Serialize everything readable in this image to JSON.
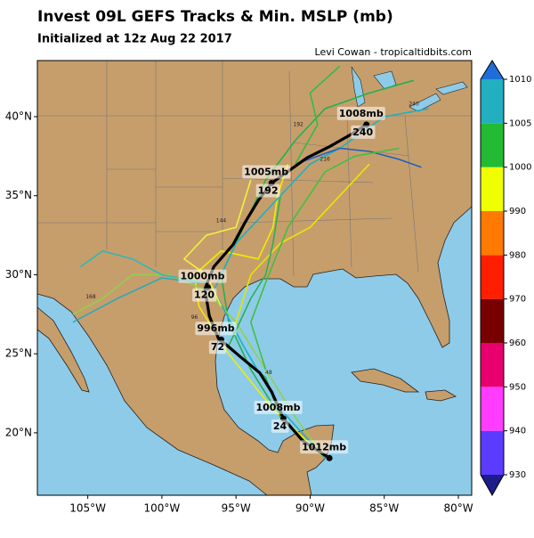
{
  "map": {
    "title": "Invest 09L GEFS Tracks & Min. MSLP (mb)",
    "subtitle": "Initialized at 12z Aug 22 2017",
    "credit": "Levi Cowan - tropicaltidbits.com",
    "xlim": [
      -108.4,
      -79.1
    ],
    "ylim": [
      16.05,
      43.55
    ],
    "xticks": [
      {
        "value": -105,
        "label": "105°W"
      },
      {
        "value": -100,
        "label": "100°W"
      },
      {
        "value": -95,
        "label": "95°W"
      },
      {
        "value": -90,
        "label": "90°W"
      },
      {
        "value": -85,
        "label": "85°W"
      },
      {
        "value": -80,
        "label": "80°W"
      }
    ],
    "yticks": [
      {
        "value": 20,
        "label": "20°N"
      },
      {
        "value": 25,
        "label": "25°N"
      },
      {
        "value": 30,
        "label": "30°N"
      },
      {
        "value": 35,
        "label": "35°N"
      },
      {
        "value": 40,
        "label": "40°N"
      }
    ],
    "colorbar": {
      "ticks": [
        930,
        940,
        950,
        960,
        970,
        980,
        990,
        1000,
        1005,
        1010
      ],
      "colors": [
        "#5b3cff",
        "#ff3cff",
        "#e8006e",
        "#780000",
        "#ff1e00",
        "#ff7a00",
        "#f0ff00",
        "#22bb33",
        "#22b0c0"
      ],
      "under_color": "#1c1c8c",
      "over_color": "#1e6ed8"
    },
    "member_tracks": [
      {
        "color": "#22b14c",
        "lon": [
          -89,
          -92,
          -94,
          -95.5,
          -96,
          -94.5,
          -93,
          -91,
          -89,
          -86,
          -83
        ],
        "lat": [
          18.4,
          21,
          24,
          27,
          30,
          33,
          36,
          38.5,
          40.5,
          41.5,
          42.3
        ]
      },
      {
        "color": "#eeee00",
        "lon": [
          -89,
          -92.5,
          -95.5,
          -97.5,
          -97.8,
          -96,
          -93.5,
          -92.5,
          -92.2,
          -91.5
        ],
        "lat": [
          18.4,
          21.5,
          25,
          28,
          30,
          31.5,
          31,
          33,
          35,
          37
        ]
      },
      {
        "color": "#90d050",
        "lon": [
          -89,
          -91,
          -93,
          -95,
          -97,
          -99.5,
          -102,
          -104,
          -106
        ],
        "lat": [
          18.4,
          21,
          24,
          27,
          29,
          30,
          30,
          28.5,
          27.5
        ]
      },
      {
        "color": "#20b0c0",
        "lon": [
          -89,
          -92,
          -94.5,
          -96.5,
          -95,
          -92,
          -90,
          -88,
          -85,
          -82
        ],
        "lat": [
          18.4,
          21.5,
          25.5,
          29,
          32,
          35,
          37,
          38,
          40,
          40.5
        ]
      },
      {
        "color": "#2060c0",
        "lon": [
          -91,
          -88,
          -86,
          -84,
          -82.5
        ],
        "lat": [
          37,
          38,
          37.8,
          37.3,
          36.8
        ]
      },
      {
        "color": "#33bb44",
        "lon": [
          -91,
          -89.5,
          -90,
          -88
        ],
        "lat": [
          37,
          39.5,
          41.5,
          43.2
        ]
      },
      {
        "color": "#e6e600",
        "lon": [
          -95,
          -94,
          -92,
          -90,
          -88,
          -86
        ],
        "lat": [
          27,
          30,
          32,
          33,
          35,
          37
        ]
      },
      {
        "color": "#40c040",
        "lon": [
          -93,
          -94,
          -93,
          -91.5,
          -89,
          -87,
          -84
        ],
        "lat": [
          24,
          27,
          29.5,
          33,
          36.5,
          37.5,
          38
        ]
      },
      {
        "color": "#30b8b8",
        "lon": [
          -97,
          -100,
          -102,
          -104,
          -105.5
        ],
        "lat": [
          29.5,
          30,
          31,
          31.5,
          30.5
        ]
      },
      {
        "color": "#30a8b8",
        "lon": [
          -97.5,
          -100,
          -103,
          -106
        ],
        "lat": [
          29.5,
          29.8,
          28.5,
          27
        ]
      },
      {
        "color": "#f0f040",
        "lon": [
          -96,
          -97,
          -98.5,
          -97,
          -95,
          -94
        ],
        "lat": [
          28,
          30,
          31,
          32.5,
          33,
          36
        ]
      },
      {
        "color": "#2cb050",
        "lon": [
          -92,
          -93,
          -95.5,
          -95,
          -94,
          -93,
          -92.5,
          -92
        ],
        "lat": [
          21,
          23.5,
          25.5,
          26.5,
          28.5,
          30,
          32,
          35
        ]
      }
    ],
    "member_labels": [
      {
        "hour": 192,
        "lon": -90.8,
        "lat": 39.5
      },
      {
        "hour": 216,
        "lon": -89,
        "lat": 37.3
      },
      {
        "hour": 240,
        "lon": -83,
        "lat": 40.8
      },
      {
        "hour": 168,
        "lon": -104.8,
        "lat": 28.6
      },
      {
        "hour": 144,
        "lon": -96,
        "lat": 33.4
      },
      {
        "hour": 48,
        "lon": -92.8,
        "lat": 23.8
      },
      {
        "hour": 96,
        "lon": -97.8,
        "lat": 27.3
      }
    ],
    "mean_track": {
      "lon": [
        -88.7,
        -90.5,
        -91.8,
        -92.6,
        -93.4,
        -94.7,
        -96.2,
        -96.8,
        -97.1,
        -96.5,
        -95.2,
        -94.4,
        -93.5,
        -92.6,
        -91.1,
        -90.2,
        -88.7,
        -87.2,
        -86.2
      ],
      "lat": [
        18.4,
        19.5,
        20.9,
        22.6,
        23.8,
        24.8,
        26.0,
        27.4,
        29.1,
        30.5,
        31.9,
        33.3,
        34.7,
        35.8,
        36.8,
        37.4,
        38.1,
        38.9,
        39.5
      ]
    },
    "mean_labels": [
      {
        "mslp": "1012mb",
        "lon": -88.7,
        "lat": 18.4
      },
      {
        "mslp": "1008mb",
        "hour": 24,
        "lon": -91.8,
        "lat": 20.9
      },
      {
        "mslp": "996mb",
        "hour": 72,
        "lon": -96.0,
        "lat": 25.9
      },
      {
        "mslp": "1000mb",
        "hour": 120,
        "lon": -96.9,
        "lat": 29.2
      },
      {
        "mslp": "1005mb",
        "hour": 192,
        "lon": -92.6,
        "lat": 35.8
      },
      {
        "mslp": "1008mb",
        "hour": 240,
        "lon": -86.2,
        "lat": 39.5
      }
    ]
  }
}
